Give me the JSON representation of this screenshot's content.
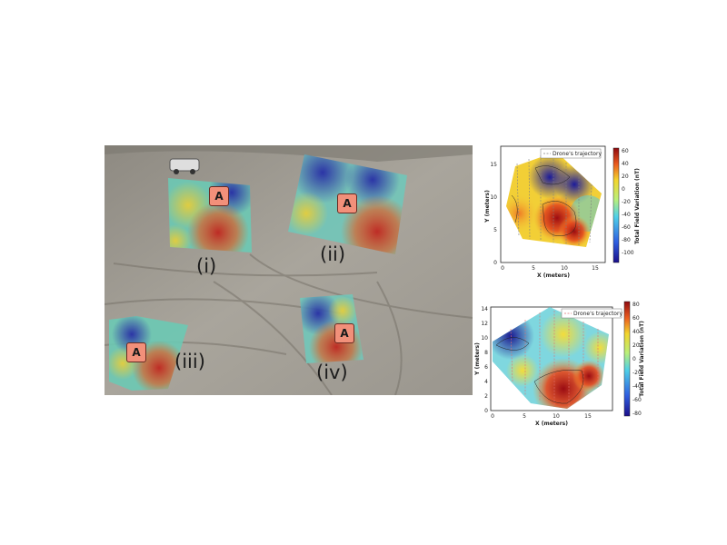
{
  "figure": {
    "site_labels": [
      "(i)",
      "(ii)",
      "(iii)",
      "(iv)"
    ],
    "anomaly_label": "A"
  },
  "chart_data": [
    {
      "type": "heatmap",
      "xlabel": "X (meters)",
      "ylabel": "Y (meters)",
      "xlim": [
        0,
        17
      ],
      "ylim": [
        0,
        17
      ],
      "xticks": [
        0,
        5,
        10,
        15
      ],
      "yticks": [
        0,
        5,
        10,
        15
      ],
      "legend": {
        "label": "Drone's trajectory",
        "placement": "top-right"
      },
      "colorbar": {
        "label": "Total Field Variation (nT)",
        "min": -120,
        "max": 60,
        "ticks": [
          60,
          40,
          20,
          0,
          -20,
          -40,
          -60,
          -80,
          -100
        ]
      },
      "colors": {
        "low": "#2a1f9a",
        "mid": "#8fe0d0",
        "high": "#a30d16",
        "trajectory": "#808080"
      }
    },
    {
      "type": "heatmap",
      "xlabel": "X (meters)",
      "ylabel": "Y (meters)",
      "xlim": [
        0,
        18
      ],
      "ylim": [
        0,
        14
      ],
      "xticks": [
        0,
        5,
        10,
        15
      ],
      "yticks": [
        0,
        2,
        4,
        6,
        8,
        10,
        12,
        14
      ],
      "legend": {
        "label": "Drone's trajectory",
        "placement": "top-right"
      },
      "colorbar": {
        "label": "Total Field Variation (nT)",
        "min": -80,
        "max": 80,
        "ticks": [
          80,
          60,
          40,
          20,
          0,
          -20,
          -40,
          -60,
          -80
        ]
      },
      "colors": {
        "low": "#2a1f9a",
        "mid": "#8fe0d0",
        "high": "#a30d16",
        "trajectory": "#e07070"
      }
    }
  ]
}
